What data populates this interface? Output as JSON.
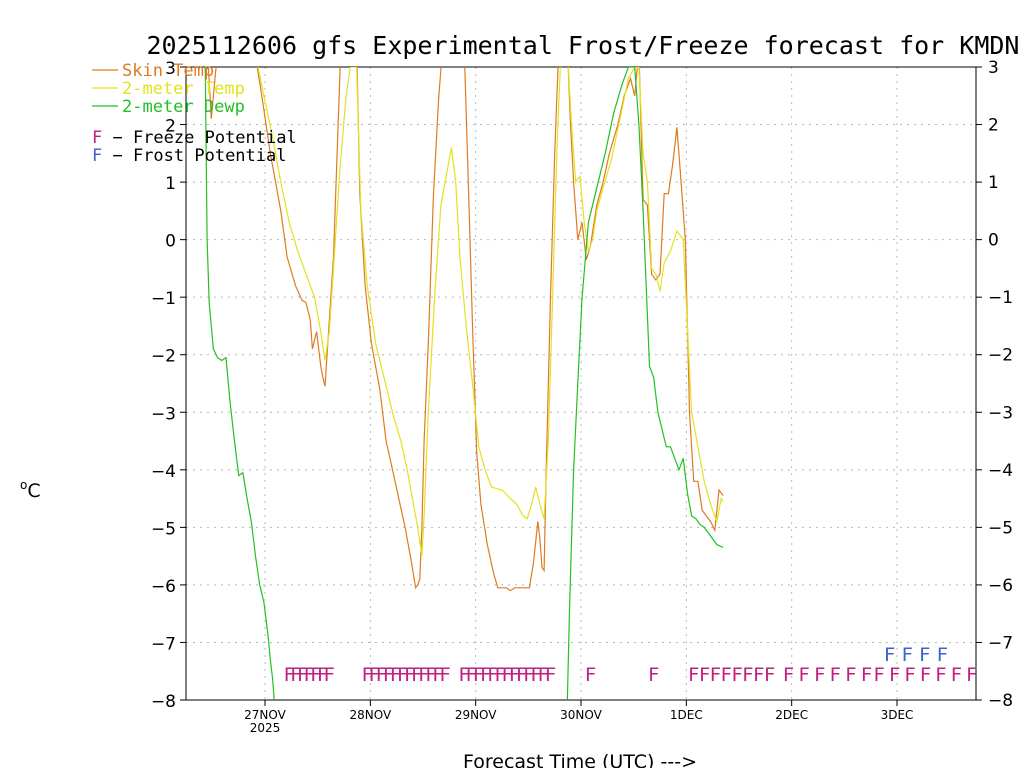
{
  "chart_data": {
    "type": "line",
    "title": "2025112606 gfs Experimental Frost/Freeze forecast for KMDN",
    "xlabel": "Forecast Time (UTC) --->",
    "ylabel": "°C",
    "ylabel_sup": "o",
    "ylabel_main": "C",
    "ylim": [
      -8,
      3
    ],
    "xlim": [
      0,
      7.5
    ],
    "yticks": [
      3,
      2,
      1,
      0,
      -1,
      -2,
      -3,
      -4,
      -5,
      -6,
      -7,
      -8
    ],
    "ytick_labels": [
      "3",
      "2",
      "1",
      "0",
      "−1",
      "−2",
      "−3",
      "−4",
      "−5",
      "−6",
      "−7",
      "−8"
    ],
    "xticks": [
      {
        "x": 0.75,
        "label": "27NOV",
        "sub": "2025"
      },
      {
        "x": 1.75,
        "label": "28NOV",
        "sub": ""
      },
      {
        "x": 2.75,
        "label": "29NOV",
        "sub": ""
      },
      {
        "x": 3.75,
        "label": "30NOV",
        "sub": ""
      },
      {
        "x": 4.75,
        "label": "1DEC",
        "sub": ""
      },
      {
        "x": 5.75,
        "label": "2DEC",
        "sub": ""
      },
      {
        "x": 6.75,
        "label": "3DEC",
        "sub": ""
      }
    ],
    "grid": true,
    "series": [
      {
        "name": "Skin Temp",
        "color": "#e07a20",
        "points": [
          [
            0.2,
            3.4
          ],
          [
            0.24,
            2.1
          ],
          [
            0.28,
            2.9
          ],
          [
            0.3,
            3.2
          ],
          [
            0.65,
            3.3
          ],
          [
            0.72,
            2.5
          ],
          [
            0.8,
            1.5
          ],
          [
            0.9,
            0.5
          ],
          [
            0.96,
            -0.3
          ],
          [
            1.04,
            -0.8
          ],
          [
            1.1,
            -1.05
          ],
          [
            1.14,
            -1.1
          ],
          [
            1.18,
            -1.4
          ],
          [
            1.2,
            -1.9
          ],
          [
            1.24,
            -1.6
          ],
          [
            1.28,
            -2.2
          ],
          [
            1.3,
            -2.4
          ],
          [
            1.32,
            -2.55
          ],
          [
            1.35,
            -1.7
          ],
          [
            1.4,
            -0.3
          ],
          [
            1.44,
            1.8
          ],
          [
            1.47,
            3.3
          ],
          [
            1.62,
            3.4
          ],
          [
            1.65,
            0.8
          ],
          [
            1.7,
            -0.8
          ],
          [
            1.76,
            -1.8
          ],
          [
            1.84,
            -2.6
          ],
          [
            1.9,
            -3.5
          ],
          [
            1.96,
            -4.0
          ],
          [
            2.02,
            -4.5
          ],
          [
            2.08,
            -5.0
          ],
          [
            2.14,
            -5.6
          ],
          [
            2.18,
            -6.05
          ],
          [
            2.2,
            -6.0
          ],
          [
            2.22,
            -5.9
          ],
          [
            2.24,
            -5.0
          ],
          [
            2.26,
            -3.5
          ],
          [
            2.3,
            -1.8
          ],
          [
            2.35,
            0.8
          ],
          [
            2.4,
            2.5
          ],
          [
            2.44,
            3.4
          ],
          [
            2.64,
            3.4
          ],
          [
            2.68,
            1.0
          ],
          [
            2.72,
            -1.5
          ],
          [
            2.76,
            -3.7
          ],
          [
            2.8,
            -4.6
          ],
          [
            2.86,
            -5.3
          ],
          [
            2.92,
            -5.8
          ],
          [
            2.96,
            -6.05
          ],
          [
            3.04,
            -6.05
          ],
          [
            3.08,
            -6.1
          ],
          [
            3.12,
            -6.05
          ],
          [
            3.2,
            -6.05
          ],
          [
            3.26,
            -6.05
          ],
          [
            3.3,
            -5.6
          ],
          [
            3.34,
            -4.9
          ],
          [
            3.36,
            -5.2
          ],
          [
            3.38,
            -5.7
          ],
          [
            3.4,
            -5.75
          ],
          [
            3.42,
            -4.0
          ],
          [
            3.46,
            -1.0
          ],
          [
            3.5,
            1.5
          ],
          [
            3.54,
            3.4
          ],
          [
            3.62,
            3.4
          ],
          [
            3.65,
            2.0
          ],
          [
            3.68,
            1.0
          ],
          [
            3.72,
            0.0
          ],
          [
            3.76,
            0.3
          ],
          [
            3.8,
            -0.35
          ],
          [
            3.84,
            -0.1
          ],
          [
            3.9,
            0.6
          ],
          [
            3.96,
            1.0
          ],
          [
            4.02,
            1.5
          ],
          [
            4.1,
            2.0
          ],
          [
            4.16,
            2.5
          ],
          [
            4.22,
            2.8
          ],
          [
            4.26,
            2.5
          ],
          [
            4.3,
            3.3
          ],
          [
            4.32,
            2.0
          ],
          [
            4.34,
            0.7
          ],
          [
            4.38,
            0.6
          ],
          [
            4.42,
            -0.6
          ],
          [
            4.46,
            -0.7
          ],
          [
            4.5,
            -0.6
          ],
          [
            4.54,
            0.8
          ],
          [
            4.58,
            0.8
          ],
          [
            4.62,
            1.3
          ],
          [
            4.66,
            1.95
          ],
          [
            4.7,
            1.0
          ],
          [
            4.74,
            0.0
          ],
          [
            4.78,
            -3.0
          ],
          [
            4.82,
            -4.2
          ],
          [
            4.86,
            -4.2
          ],
          [
            4.9,
            -4.7
          ],
          [
            4.94,
            -4.8
          ],
          [
            4.98,
            -4.9
          ],
          [
            5.02,
            -5.05
          ],
          [
            5.06,
            -4.35
          ],
          [
            5.1,
            -4.45
          ]
        ]
      },
      {
        "name": "2-meter Temp",
        "color": "#e2e21e",
        "points": [
          [
            0.2,
            3.4
          ],
          [
            0.3,
            3.1
          ],
          [
            0.65,
            3.3
          ],
          [
            0.74,
            2.5
          ],
          [
            0.82,
            1.8
          ],
          [
            0.9,
            1.0
          ],
          [
            0.98,
            0.3
          ],
          [
            1.06,
            -0.2
          ],
          [
            1.12,
            -0.5
          ],
          [
            1.18,
            -0.8
          ],
          [
            1.22,
            -1.0
          ],
          [
            1.28,
            -1.6
          ],
          [
            1.32,
            -2.1
          ],
          [
            1.36,
            -1.6
          ],
          [
            1.4,
            -0.5
          ],
          [
            1.46,
            1.2
          ],
          [
            1.52,
            2.5
          ],
          [
            1.56,
            3.0
          ],
          [
            1.62,
            3.0
          ],
          [
            1.66,
            0.5
          ],
          [
            1.72,
            -0.8
          ],
          [
            1.8,
            -1.8
          ],
          [
            1.88,
            -2.4
          ],
          [
            1.96,
            -3.0
          ],
          [
            2.04,
            -3.5
          ],
          [
            2.1,
            -4.0
          ],
          [
            2.16,
            -4.6
          ],
          [
            2.2,
            -5.0
          ],
          [
            2.24,
            -5.5
          ],
          [
            2.26,
            -4.8
          ],
          [
            2.3,
            -3.0
          ],
          [
            2.36,
            -1.0
          ],
          [
            2.42,
            0.6
          ],
          [
            2.48,
            1.2
          ],
          [
            2.52,
            1.6
          ],
          [
            2.56,
            1.0
          ],
          [
            2.6,
            -0.3
          ],
          [
            2.66,
            -1.5
          ],
          [
            2.72,
            -2.5
          ],
          [
            2.78,
            -3.6
          ],
          [
            2.84,
            -4.0
          ],
          [
            2.9,
            -4.3
          ],
          [
            3.0,
            -4.35
          ],
          [
            3.08,
            -4.5
          ],
          [
            3.14,
            -4.6
          ],
          [
            3.2,
            -4.8
          ],
          [
            3.24,
            -4.85
          ],
          [
            3.28,
            -4.6
          ],
          [
            3.32,
            -4.3
          ],
          [
            3.36,
            -4.6
          ],
          [
            3.4,
            -4.85
          ],
          [
            3.44,
            -3.5
          ],
          [
            3.48,
            -1.0
          ],
          [
            3.52,
            1.5
          ],
          [
            3.56,
            3.3
          ],
          [
            3.62,
            3.3
          ],
          [
            3.66,
            2.0
          ],
          [
            3.7,
            1.0
          ],
          [
            3.74,
            1.1
          ],
          [
            3.78,
            0.3
          ],
          [
            3.82,
            -0.2
          ],
          [
            3.86,
            0.0
          ],
          [
            3.9,
            0.5
          ],
          [
            3.96,
            0.9
          ],
          [
            4.04,
            1.4
          ],
          [
            4.12,
            2.1
          ],
          [
            4.2,
            2.8
          ],
          [
            4.26,
            3.0
          ],
          [
            4.3,
            3.0
          ],
          [
            4.34,
            1.5
          ],
          [
            4.38,
            1.0
          ],
          [
            4.42,
            -0.5
          ],
          [
            4.46,
            -0.6
          ],
          [
            4.5,
            -0.9
          ],
          [
            4.54,
            -0.4
          ],
          [
            4.6,
            -0.2
          ],
          [
            4.66,
            0.15
          ],
          [
            4.72,
            0.0
          ],
          [
            4.76,
            -1.5
          ],
          [
            4.8,
            -3.0
          ],
          [
            4.86,
            -3.6
          ],
          [
            4.92,
            -4.2
          ],
          [
            4.98,
            -4.6
          ],
          [
            5.04,
            -4.9
          ],
          [
            5.08,
            -4.5
          ],
          [
            5.1,
            -4.55
          ]
        ]
      },
      {
        "name": "2-meter Dewp",
        "color": "#22c022",
        "points": [
          [
            0.18,
            3.4
          ],
          [
            0.2,
            0.0
          ],
          [
            0.22,
            -1.1
          ],
          [
            0.26,
            -1.9
          ],
          [
            0.3,
            -2.05
          ],
          [
            0.34,
            -2.1
          ],
          [
            0.38,
            -2.05
          ],
          [
            0.42,
            -2.85
          ],
          [
            0.46,
            -3.5
          ],
          [
            0.5,
            -4.1
          ],
          [
            0.54,
            -4.05
          ],
          [
            0.58,
            -4.5
          ],
          [
            0.62,
            -4.9
          ],
          [
            0.66,
            -5.5
          ],
          [
            0.7,
            -6.0
          ],
          [
            0.74,
            -6.3
          ],
          [
            0.78,
            -6.9
          ],
          [
            0.8,
            -7.3
          ],
          [
            0.82,
            -7.6
          ],
          [
            0.84,
            -8.05
          ],
          [
            3.62,
            -8.05
          ],
          [
            3.64,
            -6.5
          ],
          [
            3.68,
            -4.0
          ],
          [
            3.72,
            -2.5
          ],
          [
            3.76,
            -1.0
          ],
          [
            3.82,
            0.3
          ],
          [
            3.9,
            0.9
          ],
          [
            3.98,
            1.5
          ],
          [
            4.06,
            2.2
          ],
          [
            4.14,
            2.7
          ],
          [
            4.2,
            3.0
          ],
          [
            4.26,
            3.0
          ],
          [
            4.3,
            2.0
          ],
          [
            4.34,
            0.5
          ],
          [
            4.4,
            -2.2
          ],
          [
            4.44,
            -2.4
          ],
          [
            4.48,
            -3.0
          ],
          [
            4.52,
            -3.3
          ],
          [
            4.56,
            -3.6
          ],
          [
            4.6,
            -3.6
          ],
          [
            4.64,
            -3.8
          ],
          [
            4.68,
            -4.0
          ],
          [
            4.72,
            -3.8
          ],
          [
            4.76,
            -4.4
          ],
          [
            4.8,
            -4.8
          ],
          [
            4.84,
            -4.85
          ],
          [
            4.88,
            -4.95
          ],
          [
            4.92,
            -5.0
          ],
          [
            4.96,
            -5.1
          ],
          [
            5.0,
            -5.2
          ],
          [
            5.04,
            -5.3
          ],
          [
            5.1,
            -5.35
          ]
        ]
      }
    ],
    "legend": {
      "position": "top-left",
      "entries": [
        "Skin Temp",
        "2-meter Temp",
        "2-meter Dewp"
      ],
      "potential_entries": [
        {
          "letter": "F",
          "text": " − Freeze Potential",
          "color": "#c02080"
        },
        {
          "letter": "F",
          "text": " − Frost Potential",
          "color": "#4060d0"
        }
      ]
    },
    "freeze_markers": {
      "letter": "F",
      "color": "#c02080",
      "y": -7.53,
      "groups": [
        {
          "start": 0.98,
          "end": 1.36,
          "count": 7
        },
        {
          "start": 1.72,
          "end": 2.46,
          "count": 12
        },
        {
          "start": 2.64,
          "end": 3.46,
          "count": 13
        },
        {
          "start": 3.84,
          "end": 3.86,
          "count": 1
        },
        {
          "start": 4.44,
          "end": 4.46,
          "count": 1
        },
        {
          "start": 4.82,
          "end": 5.54,
          "count": 8
        },
        {
          "start": 5.72,
          "end": 6.46,
          "count": 6
        },
        {
          "start": 6.58,
          "end": 7.46,
          "count": 7
        }
      ]
    },
    "frost_markers": {
      "letter": "F",
      "color": "#4060d0",
      "y": -7.18,
      "groups": [
        {
          "start": 6.68,
          "end": 7.18,
          "count": 4
        }
      ]
    }
  }
}
